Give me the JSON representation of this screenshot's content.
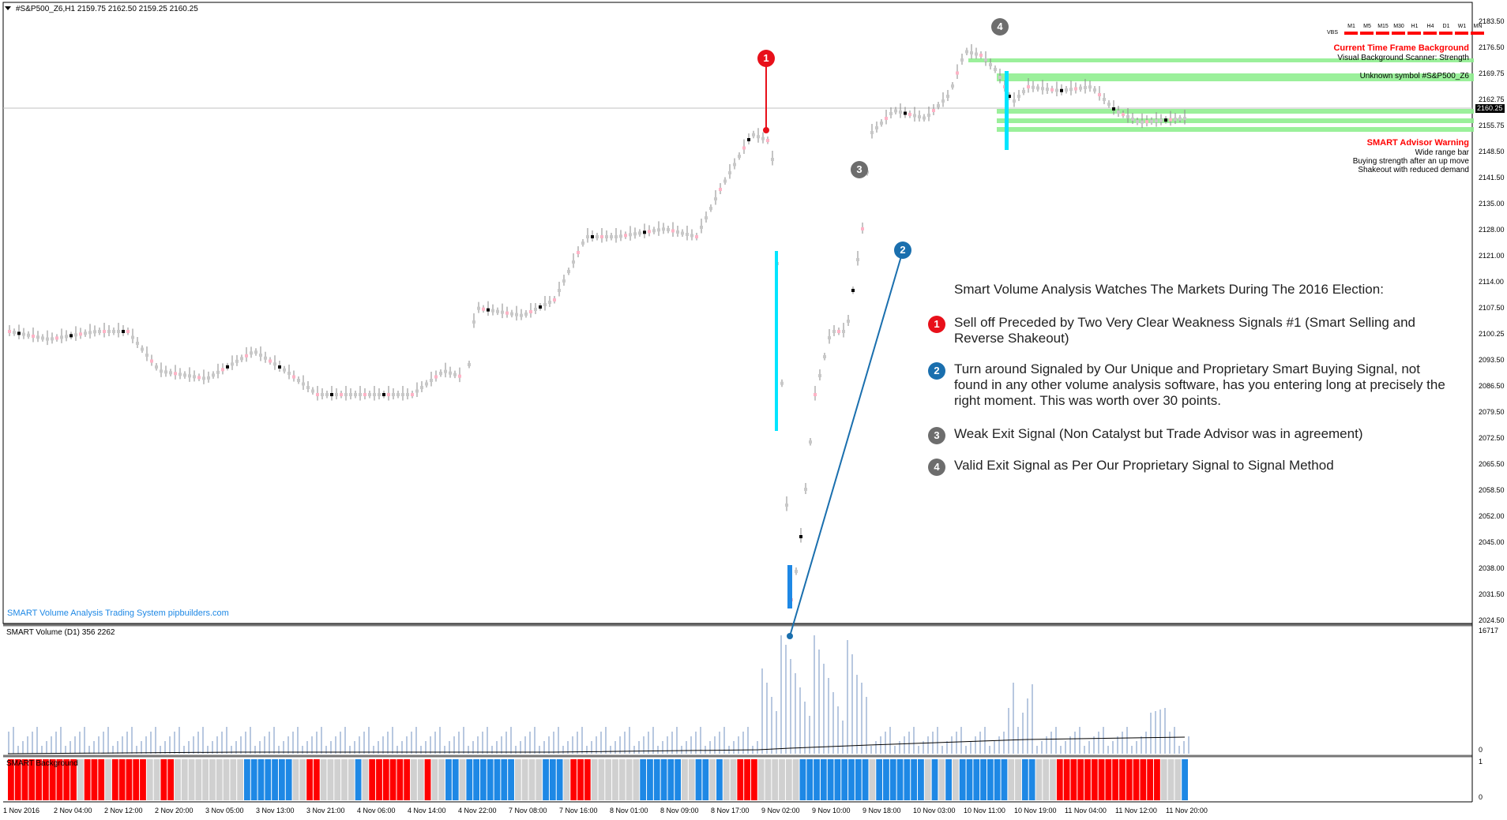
{
  "chart_header": {
    "symbol_line": "#S&P500_Z6,H1  2159.75 2162.50 2159.25 2160.25"
  },
  "price_tag": "2160.25",
  "timeframes": {
    "vbs_label": "VBS",
    "labels": [
      "M1",
      "M5",
      "M15",
      "M30",
      "H1",
      "H4",
      "D1",
      "W1",
      "MN"
    ]
  },
  "top_right": {
    "bg_title": "Current Time Frame Background",
    "bg_sub": "Visual Background Scanner: Strength",
    "unknown_symbol": "Unknown symbol #S&P500_Z6"
  },
  "advisor": {
    "title": "SMART Advisor Warning",
    "lines": [
      "Wide range bar",
      "Buying strength after an up move",
      "Shakeout with reduced demand"
    ]
  },
  "notes": {
    "heading": "Smart Volume Analysis Watches The Markets During The 2016 Election:",
    "items": [
      {
        "num": "1",
        "color": "#e8101a",
        "text": "Sell off Preceded by Two Very Clear Weakness Signals #1 (Smart Selling and Reverse Shakeout)"
      },
      {
        "num": "2",
        "color": "#1a6fae",
        "text": "Turn around Signaled by Our Unique and Proprietary Smart Buying Signal, not found in any other volume analysis software, has you entering long at precisely the right moment. This was worth over 30 points."
      },
      {
        "num": "3",
        "color": "#6d6d6d",
        "text": "Weak Exit Signal (Non Catalyst but Trade Advisor was in agreement)"
      },
      {
        "num": "4",
        "color": "#6d6d6d",
        "text": "Valid Exit Signal as Per Our Proprietary Signal to Signal Method"
      }
    ]
  },
  "markers": {
    "m1": "1",
    "m2": "2",
    "m3": "3",
    "m4": "4"
  },
  "watermark": "SMART Volume Analysis Trading System pipbuilders.com",
  "volume_panel": {
    "label": "SMART Volume (D1) 356 2262",
    "max_label": "16717",
    "min_label": "0"
  },
  "background_panel": {
    "label": "SMART Background",
    "top_label": "1",
    "bottom_label": "0"
  },
  "y_axis": [
    "2183.50",
    "2176.50",
    "2169.75",
    "2162.75",
    "2155.75",
    "2148.50",
    "2141.50",
    "2135.00",
    "2128.00",
    "2121.00",
    "2114.00",
    "2107.50",
    "2100.25",
    "2093.50",
    "2086.50",
    "2079.50",
    "2072.50",
    "2065.50",
    "2058.50",
    "2052.00",
    "2045.00",
    "2038.00",
    "2031.50",
    "2024.50"
  ],
  "x_axis": [
    "1 Nov 2016",
    "2 Nov 04:00",
    "2 Nov 12:00",
    "2 Nov 20:00",
    "3 Nov 05:00",
    "3 Nov 13:00",
    "3 Nov 21:00",
    "4 Nov 06:00",
    "4 Nov 14:00",
    "4 Nov 22:00",
    "7 Nov 08:00",
    "7 Nov 16:00",
    "8 Nov 01:00",
    "8 Nov 09:00",
    "8 Nov 17:00",
    "9 Nov 02:00",
    "9 Nov 10:00",
    "9 Nov 18:00",
    "10 Nov 03:00",
    "10 Nov 11:00",
    "10 Nov 19:00",
    "11 Nov 04:00",
    "11 Nov 12:00",
    "11 Nov 20:00"
  ],
  "colors": {
    "up_candle": "#c8c8c8",
    "red_bar": "#ff0000",
    "blue_bar": "#1e88e5",
    "gray_bar": "#d0d0d0",
    "zone_green": "#90ee90",
    "cyan": "#00e5ff",
    "vol_bar": "#b8c8e0"
  }
}
